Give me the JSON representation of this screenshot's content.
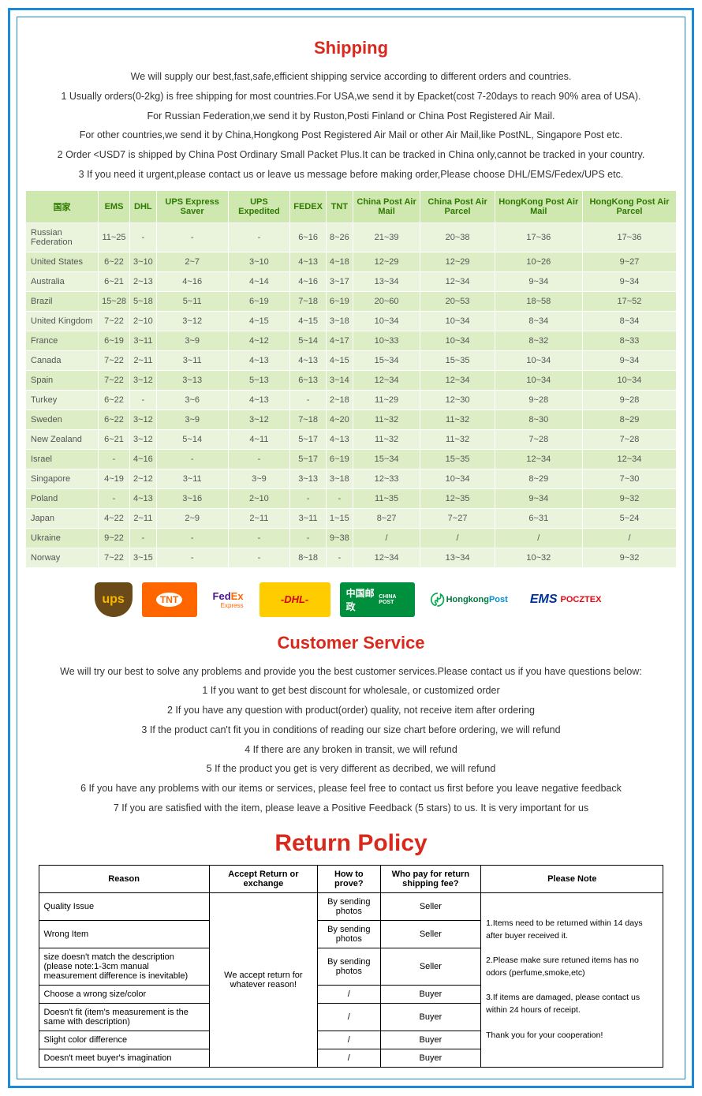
{
  "shipping": {
    "title": "Shipping",
    "intro": "We will supply our best,fast,safe,efficient shipping service according to different orders and countries.",
    "lines": [
      "1 Usually orders(0-2kg) is free shipping for most countries.For USA,we send it by Epacket(cost 7-20days to reach 90% area of USA).",
      "For Russian Federation,we send it by Ruston,Posti Finland or China Post Registered Air Mail.",
      "For other countries,we send it by China,Hongkong Post Registered Air Mail or other Air Mail,like PostNL, Singapore Post etc.",
      "2 Order <USD7 is shipped by China Post Ordinary Small Packet Plus.It can be tracked in China only,cannot be tracked in your country.",
      "3 If you need it urgent,please contact us or leave us message before making order,Please choose DHL/EMS/Fedex/UPS etc."
    ],
    "table": {
      "headers": [
        "国家",
        "EMS",
        "DHL",
        "UPS Express Saver",
        "UPS Expedited",
        "FEDEX",
        "TNT",
        "China Post Air Mail",
        "China Post Air Parcel",
        "HongKong Post Air Mail",
        "HongKong Post Air Parcel"
      ],
      "rows": [
        [
          "Russian Federation",
          "11~25",
          "-",
          "-",
          "-",
          "6~16",
          "8~26",
          "21~39",
          "20~38",
          "17~36",
          "17~36"
        ],
        [
          "United States",
          "6~22",
          "3~10",
          "2~7",
          "3~10",
          "4~13",
          "4~18",
          "12~29",
          "12~29",
          "10~26",
          "9~27"
        ],
        [
          "Australia",
          "6~21",
          "2~13",
          "4~16",
          "4~14",
          "4~16",
          "3~17",
          "13~34",
          "12~34",
          "9~34",
          "9~34"
        ],
        [
          "Brazil",
          "15~28",
          "5~18",
          "5~11",
          "6~19",
          "7~18",
          "6~19",
          "20~60",
          "20~53",
          "18~58",
          "17~52"
        ],
        [
          "United Kingdom",
          "7~22",
          "2~10",
          "3~12",
          "4~15",
          "4~15",
          "3~18",
          "10~34",
          "10~34",
          "8~34",
          "8~34"
        ],
        [
          "France",
          "6~19",
          "3~11",
          "3~9",
          "4~12",
          "5~14",
          "4~17",
          "10~33",
          "10~34",
          "8~32",
          "8~33"
        ],
        [
          "Canada",
          "7~22",
          "2~11",
          "3~11",
          "4~13",
          "4~13",
          "4~15",
          "15~34",
          "15~35",
          "10~34",
          "9~34"
        ],
        [
          "Spain",
          "7~22",
          "3~12",
          "3~13",
          "5~13",
          "6~13",
          "3~14",
          "12~34",
          "12~34",
          "10~34",
          "10~34"
        ],
        [
          "Turkey",
          "6~22",
          "-",
          "3~6",
          "4~13",
          "-",
          "2~18",
          "11~29",
          "12~30",
          "9~28",
          "9~28"
        ],
        [
          "Sweden",
          "6~22",
          "3~12",
          "3~9",
          "3~12",
          "7~18",
          "4~20",
          "11~32",
          "11~32",
          "8~30",
          "8~29"
        ],
        [
          "New Zealand",
          "6~21",
          "3~12",
          "5~14",
          "4~11",
          "5~17",
          "4~13",
          "11~32",
          "11~32",
          "7~28",
          "7~28"
        ],
        [
          "Israel",
          "-",
          "4~16",
          "-",
          "-",
          "5~17",
          "6~19",
          "15~34",
          "15~35",
          "12~34",
          "12~34"
        ],
        [
          "Singapore",
          "4~19",
          "2~12",
          "3~11",
          "3~9",
          "3~13",
          "3~18",
          "12~33",
          "10~34",
          "8~29",
          "7~30"
        ],
        [
          "Poland",
          "-",
          "4~13",
          "3~16",
          "2~10",
          "-",
          "-",
          "11~35",
          "12~35",
          "9~34",
          "9~32"
        ],
        [
          "Japan",
          "4~22",
          "2~11",
          "2~9",
          "2~11",
          "3~11",
          "1~15",
          "8~27",
          "7~27",
          "6~31",
          "5~24"
        ],
        [
          "Ukraine",
          "9~22",
          "-",
          "-",
          "-",
          "-",
          "9~38",
          "/",
          "/",
          "/",
          "/"
        ],
        [
          "Norway",
          "7~22",
          "3~15",
          "-",
          "-",
          "8~18",
          "-",
          "12~34",
          "13~34",
          "10~32",
          "9~32"
        ]
      ]
    }
  },
  "carriers": {
    "ups": "ups",
    "tnt": "TNT",
    "fedex_fed": "Fed",
    "fedex_ex": "Ex",
    "fedex_sub": "Express",
    "dhl": "-DHL-",
    "chinapost_cn": "中国邮政",
    "chinapost_en": "CHINA POST",
    "hk_label": "Hongkong",
    "hk_post": "Post",
    "ems": "EMS",
    "ems_pocztex": "POCZTEX"
  },
  "customer": {
    "title": "Customer Service",
    "intro": "We will try our best to solve any problems and provide you the best customer services.Please contact us if you have questions below:",
    "lines": [
      "1 If you want to get best discount for wholesale, or customized order",
      "2 If you have any question with product(order) quality, not receive item after ordering",
      "3 If the product can't fit you in conditions of reading our size chart before ordering, we will refund",
      "4 If there are any broken in transit, we will refund",
      "5 If the product you get is very different as decribed, we will refund",
      "6 If you have any problems with our items or services, please feel free to contact us first before you leave negative feedback",
      "7 If you are satisfied with the item, please leave a Positive Feedback (5 stars) to us. It is very important for us"
    ]
  },
  "return": {
    "title": "Return Policy",
    "headers": [
      "Reason",
      "Accept Return or exchange",
      "How to prove?",
      "Who pay for return shipping fee?",
      "Please Note"
    ],
    "accept_text": "We accept return for whatever reason!",
    "rows": [
      {
        "reason": "Quality Issue",
        "prove": "By sending photos",
        "who": "Seller"
      },
      {
        "reason": "Wrong Item",
        "prove": "By sending photos",
        "who": "Seller"
      },
      {
        "reason": "size doesn't match the description\n(please note:1-3cm manual measurement difference is inevitable)",
        "prove": "By sending photos",
        "who": "Seller"
      },
      {
        "reason": "Choose a wrong size/color",
        "prove": "/",
        "who": "Buyer"
      },
      {
        "reason": "Doesn't fit (item's measurement is the same with description)",
        "prove": "/",
        "who": "Buyer"
      },
      {
        "reason": "Slight color difference",
        "prove": "/",
        "who": "Buyer"
      },
      {
        "reason": "Doesn't meet buyer's imagination",
        "prove": "/",
        "who": "Buyer"
      }
    ],
    "notes": "1.Items need to be returned within 14 days after buyer received it.\n\n2.Please make sure retuned items has no odors (perfume,smoke,etc)\n\n3.If items are damaged, please contact us within 24 hours of receipt.\n\nThank you for your cooperation!"
  }
}
